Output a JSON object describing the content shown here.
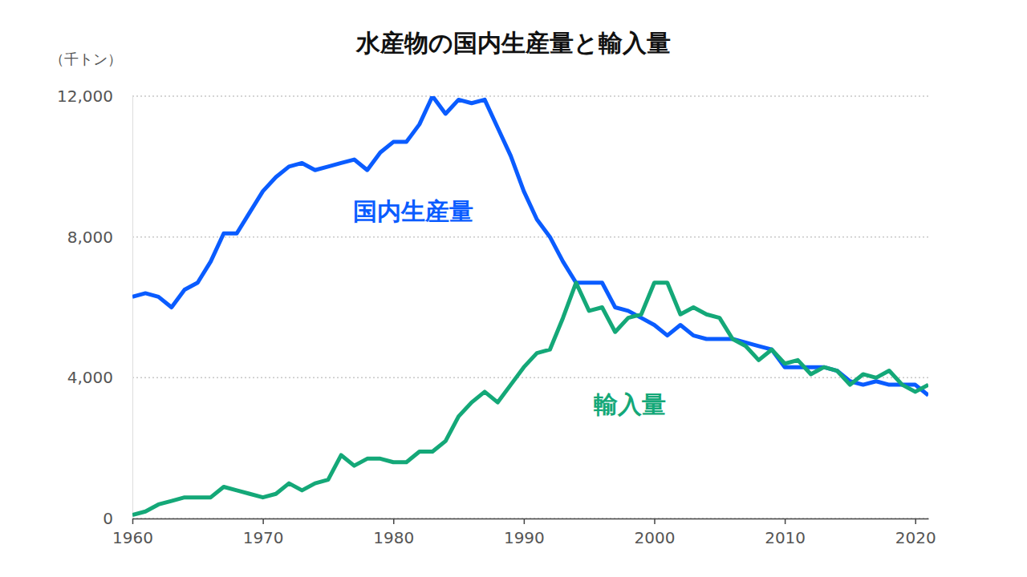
{
  "chart_data": {
    "type": "line",
    "title": "水産物の国内生産量と輸入量",
    "y_label": "（千トン）",
    "x": [
      1960,
      1961,
      1962,
      1963,
      1964,
      1965,
      1966,
      1967,
      1968,
      1969,
      1970,
      1971,
      1972,
      1973,
      1974,
      1975,
      1976,
      1977,
      1978,
      1979,
      1980,
      1981,
      1982,
      1983,
      1984,
      1985,
      1986,
      1987,
      1988,
      1989,
      1990,
      1991,
      1992,
      1993,
      1994,
      1995,
      1996,
      1997,
      1998,
      1999,
      2000,
      2001,
      2002,
      2003,
      2004,
      2005,
      2006,
      2007,
      2008,
      2009,
      2010,
      2011,
      2012,
      2013,
      2014,
      2015,
      2016,
      2017,
      2018,
      2019,
      2020,
      2021
    ],
    "series": [
      {
        "name": "国内生産量",
        "color": "#0a5cff",
        "values": [
          6300,
          6400,
          6300,
          6000,
          6500,
          6700,
          7300,
          8100,
          8100,
          8700,
          9300,
          9700,
          10000,
          10100,
          9900,
          10000,
          10100,
          10200,
          9900,
          10400,
          10700,
          10700,
          11200,
          12000,
          11500,
          11900,
          11800,
          11900,
          11100,
          10300,
          9300,
          8500,
          8000,
          7300,
          6700,
          6700,
          6700,
          6000,
          5900,
          5700,
          5500,
          5200,
          5500,
          5200,
          5100,
          5100,
          5100,
          5000,
          4900,
          4800,
          4300,
          4300,
          4300,
          4300,
          4200,
          3900,
          3800,
          3900,
          3800,
          3800,
          3800,
          3500
        ]
      },
      {
        "name": "輸入量",
        "color": "#14a878",
        "values": [
          100,
          200,
          400,
          500,
          600,
          600,
          600,
          900,
          800,
          700,
          600,
          700,
          1000,
          800,
          1000,
          1100,
          1800,
          1500,
          1700,
          1700,
          1600,
          1600,
          1900,
          1900,
          2200,
          2900,
          3300,
          3600,
          3300,
          3800,
          4300,
          4700,
          4800,
          5700,
          6700,
          5900,
          6000,
          5300,
          5700,
          5800,
          6700,
          6700,
          5800,
          6000,
          5800,
          5700,
          5100,
          4900,
          4500,
          4800,
          4400,
          4500,
          4100,
          4300,
          4200,
          3800,
          4100,
          4000,
          4200,
          3800,
          3600,
          3800
        ]
      }
    ],
    "xlim": [
      1960,
      2021
    ],
    "xticks": [
      1960,
      1970,
      1980,
      1990,
      2000,
      2010,
      2020
    ],
    "ylim": [
      0,
      12000
    ],
    "yticks": [
      0,
      {
        "value": 4000,
        "label": "4,000"
      },
      {
        "value": 8000,
        "label": "8,000"
      },
      {
        "value": 12000,
        "label": "12,000"
      }
    ],
    "grid": true
  }
}
